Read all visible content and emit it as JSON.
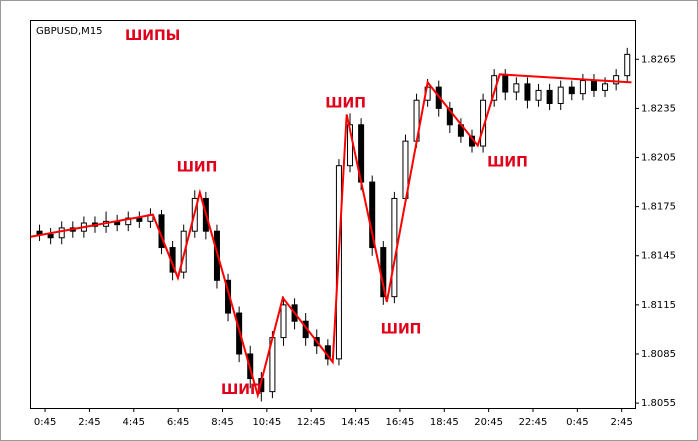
{
  "chart_data": {
    "type": "candlestick",
    "title": "GBPUSD,M15",
    "subtitle": "ШИПЫ",
    "x": [
      0.5,
      1.0,
      1.5,
      2.0,
      2.5,
      3.0,
      3.5,
      4.0,
      4.5,
      5.0,
      5.5,
      6.0,
      6.5,
      7.0,
      7.5,
      8.0,
      8.5,
      9.0,
      9.5,
      10.0,
      10.5,
      11.0,
      11.5,
      12.0,
      12.5,
      13.0,
      13.5,
      14.0,
      14.5,
      15.0,
      15.5,
      16.0,
      16.5,
      17.0,
      17.5,
      18.0,
      18.5,
      19.0,
      19.5,
      20.0,
      20.5,
      21.0,
      21.5,
      22.0,
      22.5,
      23.0,
      23.5,
      24.0,
      24.5,
      25.0,
      25.5,
      26.0,
      26.5,
      27.0
    ],
    "open": [
      1.816,
      1.8158,
      1.8156,
      1.8162,
      1.816,
      1.8165,
      1.8163,
      1.8166,
      1.8164,
      1.8168,
      1.8166,
      1.817,
      1.815,
      1.8135,
      1.816,
      1.818,
      1.816,
      1.813,
      1.811,
      1.8085,
      1.807,
      1.8062,
      1.8095,
      1.8115,
      1.8105,
      1.8095,
      1.809,
      1.8082,
      1.82,
      1.8225,
      1.819,
      1.815,
      1.812,
      1.818,
      1.8215,
      1.824,
      1.8248,
      1.8235,
      1.8225,
      1.8218,
      1.8212,
      1.824,
      1.8255,
      1.8245,
      1.825,
      1.824,
      1.8246,
      1.8238,
      1.8248,
      1.8244,
      1.8252,
      1.8246,
      1.825,
      1.8255
    ],
    "high": [
      1.8164,
      1.8162,
      1.8166,
      1.8166,
      1.8169,
      1.8169,
      1.8172,
      1.817,
      1.8172,
      1.8172,
      1.8174,
      1.8173,
      1.8154,
      1.8164,
      1.8185,
      1.8184,
      1.8164,
      1.8134,
      1.8114,
      1.809,
      1.8074,
      1.8099,
      1.812,
      1.8119,
      1.811,
      1.81,
      1.8094,
      1.8204,
      1.8232,
      1.8229,
      1.8194,
      1.8154,
      1.8184,
      1.8219,
      1.8244,
      1.8253,
      1.8252,
      1.8239,
      1.8229,
      1.8222,
      1.8244,
      1.8259,
      1.8259,
      1.8254,
      1.8254,
      1.825,
      1.825,
      1.8252,
      1.8252,
      1.8256,
      1.8256,
      1.8254,
      1.8259,
      1.8272
    ],
    "low": [
      1.8154,
      1.8152,
      1.8152,
      1.8156,
      1.8156,
      1.8159,
      1.8159,
      1.816,
      1.816,
      1.8162,
      1.8162,
      1.8146,
      1.813,
      1.8131,
      1.8156,
      1.8155,
      1.8125,
      1.8105,
      1.808,
      1.8064,
      1.8056,
      1.8058,
      1.809,
      1.81,
      1.809,
      1.8085,
      1.8078,
      1.8078,
      1.8196,
      1.8185,
      1.8145,
      1.8115,
      1.8116,
      1.8176,
      1.8211,
      1.8236,
      1.823,
      1.822,
      1.8214,
      1.8208,
      1.8208,
      1.8236,
      1.824,
      1.824,
      1.8235,
      1.8236,
      1.8234,
      1.8234,
      1.824,
      1.824,
      1.8242,
      1.8242,
      1.8246,
      1.8251
    ],
    "close": [
      1.8158,
      1.8156,
      1.8162,
      1.816,
      1.8165,
      1.8163,
      1.8166,
      1.8164,
      1.8168,
      1.8166,
      1.817,
      1.815,
      1.8135,
      1.816,
      1.818,
      1.816,
      1.813,
      1.811,
      1.8085,
      1.807,
      1.8062,
      1.8095,
      1.8115,
      1.8105,
      1.8095,
      1.809,
      1.8082,
      1.82,
      1.8225,
      1.819,
      1.815,
      1.812,
      1.818,
      1.8215,
      1.824,
      1.8248,
      1.8235,
      1.8225,
      1.8218,
      1.8212,
      1.824,
      1.8255,
      1.8245,
      1.825,
      1.824,
      1.8246,
      1.8238,
      1.8248,
      1.8244,
      1.8252,
      1.8246,
      1.825,
      1.8255,
      1.8268
    ],
    "zigzag": {
      "color": "#ff0000",
      "x": [
        0.1,
        5.61,
        6.74,
        7.73,
        10.34,
        11.47,
        13.72,
        14.35,
        16.16,
        18.0,
        20.26,
        21.25,
        27.19
      ],
      "values": [
        1.81566,
        1.81701,
        1.81315,
        1.81836,
        1.80599,
        1.81193,
        1.80801,
        1.82313,
        1.81168,
        1.82509,
        1.82123,
        1.82558,
        1.82509
      ]
    },
    "annotations": [
      {
        "text": "ШИП",
        "x": 7.6,
        "y": 1.8199
      },
      {
        "text": "ШИП",
        "x": 14.3,
        "y": 1.8238
      },
      {
        "text": "ШИП",
        "x": 16.8,
        "y": 1.81
      },
      {
        "text": "ШИП",
        "x": 21.6,
        "y": 1.8202
      },
      {
        "text": "ШИП",
        "x": 9.6,
        "y": 1.8063
      }
    ],
    "xlim": [
      0.07,
      27.35
    ],
    "ylim": [
      1.8052,
      1.8289
    ],
    "xticks": [
      {
        "value": 0.75,
        "label": "0:45"
      },
      {
        "value": 2.75,
        "label": "2:45"
      },
      {
        "value": 4.75,
        "label": "4:45"
      },
      {
        "value": 6.75,
        "label": "6:45"
      },
      {
        "value": 8.75,
        "label": "8:45"
      },
      {
        "value": 10.75,
        "label": "10:45"
      },
      {
        "value": 12.75,
        "label": "12:45"
      },
      {
        "value": 14.75,
        "label": "14:45"
      },
      {
        "value": 16.75,
        "label": "16:45"
      },
      {
        "value": 18.75,
        "label": "18:45"
      },
      {
        "value": 20.75,
        "label": "20:45"
      },
      {
        "value": 22.75,
        "label": "22:45"
      },
      {
        "value": 24.75,
        "label": "0:45"
      },
      {
        "value": 26.75,
        "label": "2:45"
      }
    ],
    "yticks": [
      1.8265,
      1.8235,
      1.8205,
      1.8175,
      1.8145,
      1.8115,
      1.8085,
      1.8055
    ]
  }
}
